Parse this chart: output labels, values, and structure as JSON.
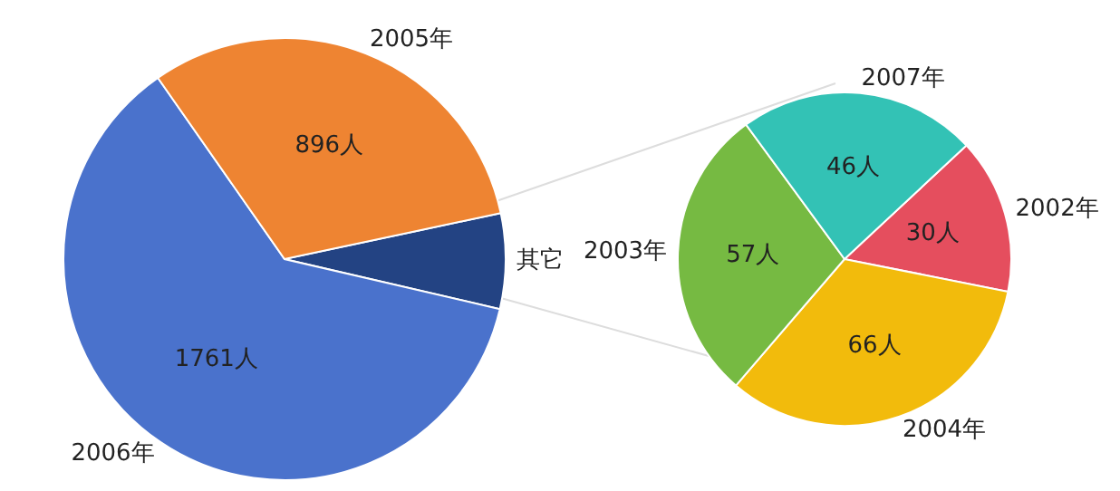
{
  "chart_data": [
    {
      "type": "pie",
      "categories": [
        "其它",
        "2006年",
        "2005年"
      ],
      "values": [
        199,
        1761,
        896
      ],
      "colors": [
        "#234383",
        "#4a72cc",
        "#ee8432"
      ],
      "value_labels": [
        null,
        "1761人",
        "896人"
      ]
    },
    {
      "type": "pie",
      "categories": [
        "2002年",
        "2004年",
        "2003年",
        "2007年"
      ],
      "values": [
        30,
        66,
        57,
        46
      ],
      "colors": [
        "#e54e5e",
        "#f2bb0c",
        "#76ba42",
        "#33c2b5"
      ],
      "value_labels": [
        "30人",
        "66人",
        "57人",
        "46人"
      ]
    }
  ]
}
